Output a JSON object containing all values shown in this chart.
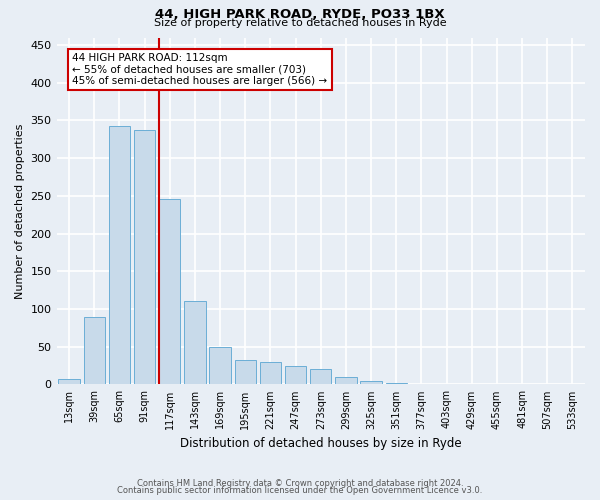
{
  "title1": "44, HIGH PARK ROAD, RYDE, PO33 1BX",
  "title2": "Size of property relative to detached houses in Ryde",
  "xlabel": "Distribution of detached houses by size in Ryde",
  "ylabel": "Number of detached properties",
  "bar_labels": [
    "13sqm",
    "39sqm",
    "65sqm",
    "91sqm",
    "117sqm",
    "143sqm",
    "169sqm",
    "195sqm",
    "221sqm",
    "247sqm",
    "273sqm",
    "299sqm",
    "325sqm",
    "351sqm",
    "377sqm",
    "403sqm",
    "429sqm",
    "455sqm",
    "481sqm",
    "507sqm",
    "533sqm"
  ],
  "bar_values": [
    7,
    89,
    343,
    337,
    246,
    110,
    50,
    33,
    30,
    24,
    21,
    10,
    5,
    2,
    1,
    1,
    0,
    0,
    1,
    0,
    0
  ],
  "bar_color": "#c8daea",
  "bar_edge_color": "#6baed6",
  "vline_x": 4,
  "vline_color": "#cc0000",
  "annotation_title": "44 HIGH PARK ROAD: 112sqm",
  "annotation_line1": "← 55% of detached houses are smaller (703)",
  "annotation_line2": "45% of semi-detached houses are larger (566) →",
  "annotation_box_color": "#ffffff",
  "annotation_box_edge": "#cc0000",
  "ylim": [
    0,
    460
  ],
  "yticks": [
    0,
    50,
    100,
    150,
    200,
    250,
    300,
    350,
    400,
    450
  ],
  "footer1": "Contains HM Land Registry data © Crown copyright and database right 2024.",
  "footer2": "Contains public sector information licensed under the Open Government Licence v3.0.",
  "bg_color": "#e8eef5",
  "plot_bg_color": "#e8eef5"
}
